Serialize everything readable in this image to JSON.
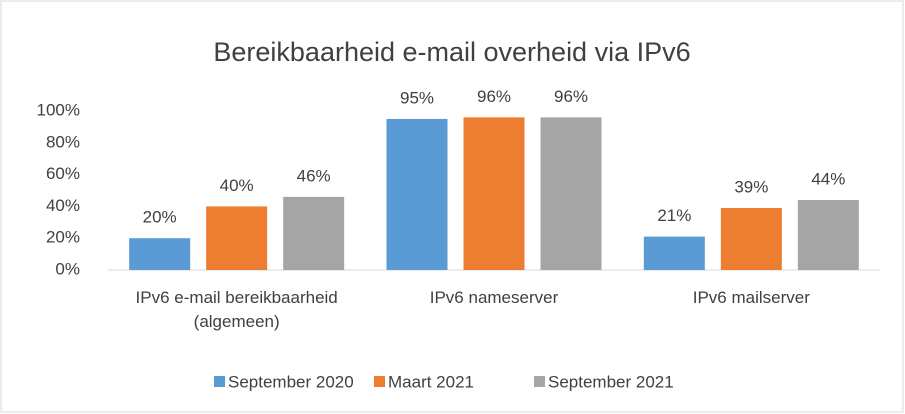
{
  "chart_data": {
    "type": "bar",
    "title": "Bereikbaarheid e-mail overheid via IPv6",
    "categories": [
      "IPv6 e-mail bereikbaarheid (algemeen)",
      "IPv6 nameserver",
      "IPv6 mailserver"
    ],
    "series": [
      {
        "name": "September 2020",
        "color": "#5b9bd5",
        "values": [
          20,
          95,
          21
        ],
        "value_labels": [
          "20%",
          "95%",
          "21%"
        ]
      },
      {
        "name": "Maart 2021",
        "color": "#ed7d31",
        "values": [
          40,
          96,
          39
        ],
        "value_labels": [
          "40%",
          "96%",
          "39%"
        ]
      },
      {
        "name": "September 2021",
        "color": "#a5a5a5",
        "values": [
          46,
          96,
          44
        ],
        "value_labels": [
          "46%",
          "96%",
          "44%"
        ]
      }
    ],
    "ylim": [
      0,
      100
    ],
    "yticks": [
      {
        "value": 0,
        "label": "0%"
      },
      {
        "value": 20,
        "label": "20%"
      },
      {
        "value": 40,
        "label": "40%"
      },
      {
        "value": 60,
        "label": "60%"
      },
      {
        "value": 80,
        "label": "80%"
      },
      {
        "value": 100,
        "label": "100%"
      }
    ],
    "grid": false,
    "legend": "bottom"
  }
}
